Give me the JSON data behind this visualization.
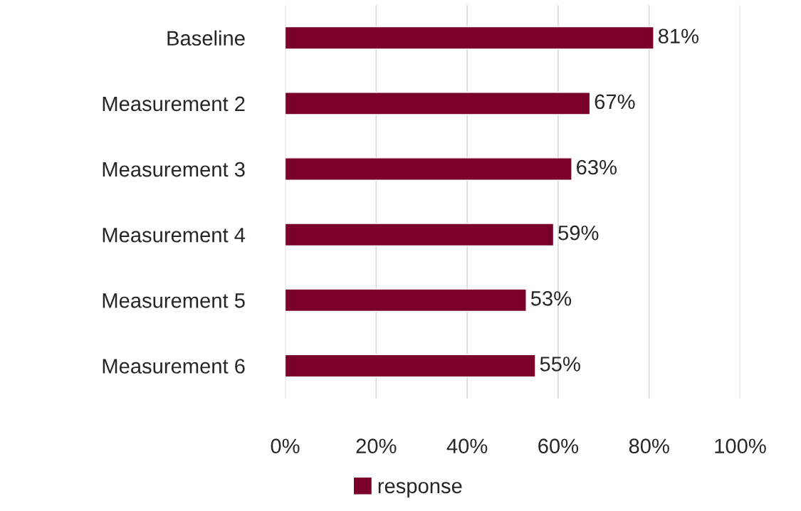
{
  "chart_data": {
    "type": "bar",
    "orientation": "horizontal",
    "categories": [
      "Baseline",
      "Measurement 2",
      "Measurement 3",
      "Measurement 4",
      "Measurement 5",
      "Measurement 6"
    ],
    "series": [
      {
        "name": "response",
        "color": "#7b0029",
        "values": [
          81,
          67,
          63,
          59,
          53,
          55
        ],
        "value_labels": [
          "81%",
          "67%",
          "63%",
          "59%",
          "53%",
          "55%"
        ]
      }
    ],
    "xlim": [
      0,
      100
    ],
    "xticks": [
      {
        "value": 0,
        "label": "0%"
      },
      {
        "value": 20,
        "label": "20%"
      },
      {
        "value": 40,
        "label": "40%"
      },
      {
        "value": 60,
        "label": "60%"
      },
      {
        "value": 80,
        "label": "80%"
      },
      {
        "value": 100,
        "label": "100%"
      }
    ],
    "grid": "x",
    "legend": "bottom"
  }
}
